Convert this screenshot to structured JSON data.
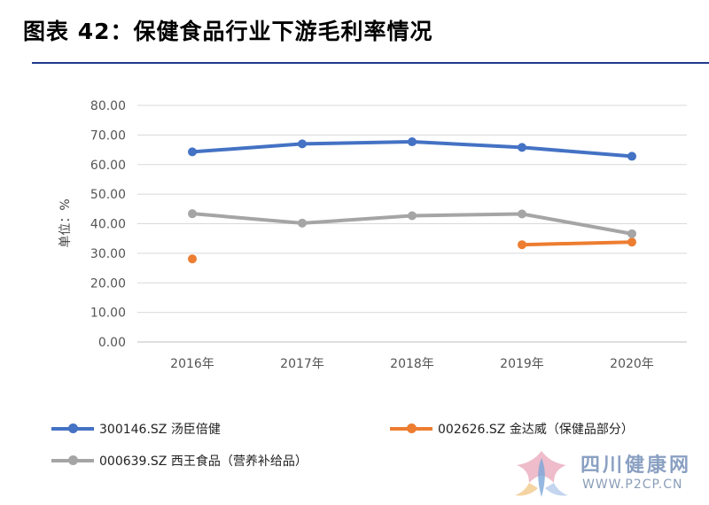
{
  "header": {
    "title": "图表 42：保健食品行业下游毛利率情况"
  },
  "chart_data": {
    "type": "line",
    "categories": [
      "2016年",
      "2017年",
      "2018年",
      "2019年",
      "2020年"
    ],
    "ylabel": "单位：%",
    "ylim": [
      0,
      80
    ],
    "yticks": [
      "0.00",
      "10.00",
      "20.00",
      "30.00",
      "40.00",
      "50.00",
      "60.00",
      "70.00",
      "80.00"
    ],
    "grid": true,
    "legend_position": "bottom",
    "series": [
      {
        "name": "300146.SZ 汤臣倍健",
        "color": "#4472c4",
        "values": [
          64.3,
          67.0,
          67.7,
          65.8,
          62.8
        ]
      },
      {
        "name": "002626.SZ 金达威（保健品部分）",
        "color": "#ed7d31",
        "values": [
          28.1,
          null,
          null,
          32.9,
          33.8
        ]
      },
      {
        "name": "000639.SZ 西王食品（营养补给品）",
        "color": "#a5a5a5",
        "values": [
          43.4,
          40.2,
          42.7,
          43.3,
          36.6
        ]
      }
    ]
  },
  "watermark": {
    "name": "四川健康网",
    "url": "WWW.P2CP.CN"
  }
}
